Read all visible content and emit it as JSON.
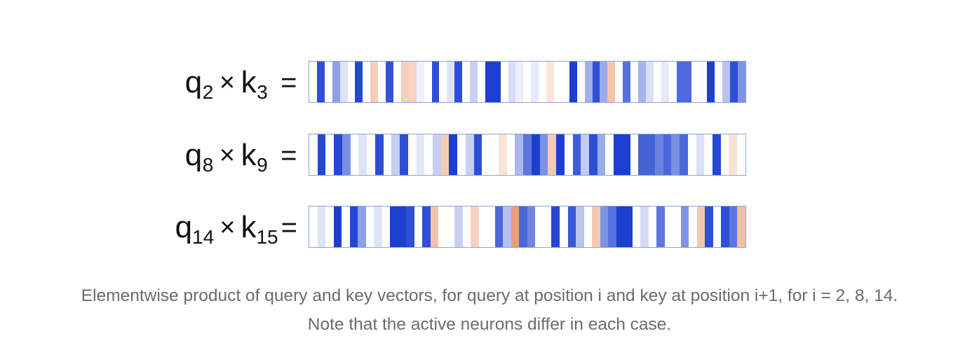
{
  "rows": [
    {
      "q_sub": "2",
      "k_sub": "3",
      "cells": [
        "#ffffff",
        "#2e4fd6",
        "#ffffff",
        "#8ea0e8",
        "#dfe3f7",
        "#ffffff",
        "#2448d2",
        "#ffffff",
        "#f5cdb8",
        "#ffffff",
        "#3254d8",
        "#fdfdff",
        "#f2d0c0",
        "#f6d3c2",
        "#eef0fb",
        "#ffffff",
        "#2d4fd5",
        "#ffffff",
        "#dfe4f8",
        "#2e4fd6",
        "#ffffff",
        "#c9d1f2",
        "#ffffff",
        "#1d3fcf",
        "#1d3fcf",
        "#ffffff",
        "#d7ddf5",
        "#eceffb",
        "#ffffff",
        "#e7eafa",
        "#ffffff",
        "#f9e6dc",
        "#ffffff",
        "#ffffff",
        "#1d3fcf",
        "#ffffff",
        "#9fb0ea",
        "#2e4fd6",
        "#9aace8",
        "#f4c5ac",
        "#ffffff",
        "#5570dc",
        "#ffffff",
        "#a5b4eb",
        "#dbe0f7",
        "#ffffff",
        "#e5e9f9",
        "#ffffff",
        "#4e6bdb",
        "#4e6bdb",
        "#ffffff",
        "#fbfbff",
        "#1d3fcf",
        "#ffffff",
        "#b7c3ef",
        "#2d4fd5",
        "#7e93e4"
      ],
      "eq": "="
    },
    {
      "q_sub": "8",
      "k_sub": "9",
      "cells": [
        "#ffffff",
        "#2448d2",
        "#ffffff",
        "#2448d2",
        "#7b8fe3",
        "#ffffff",
        "#dfe3f7",
        "#ffffff",
        "#2d4fd5",
        "#ffffff",
        "#c5cef2",
        "#2d4fd5",
        "#ffffff",
        "#e2e6f8",
        "#ffffff",
        "#c7d0f2",
        "#f3ccb6",
        "#1d3fcf",
        "#ffffff",
        "#c8d0f2",
        "#2d4fd5",
        "#ffffff",
        "#ffffff",
        "#f9e4d8",
        "#ffffff",
        "#a9b7ec",
        "#5c76de",
        "#1d3fcf",
        "#7d91e3",
        "#f3cab4",
        "#1d3fcf",
        "#ffffff",
        "#3e5dd8",
        "#c3ccf1",
        "#2d4fd5",
        "#9aace8",
        "#ffffff",
        "#1d3fcf",
        "#1d3fcf",
        "#ffffff",
        "#4563d9",
        "#4563d9",
        "#6b83e0",
        "#4b68da",
        "#7b8fe3",
        "#4b68da",
        "#ffffff",
        "#dbe0f7",
        "#ffffff",
        "#2448d2",
        "#ffffff",
        "#f8e1d4",
        "#ffffff"
      ],
      "eq": "="
    },
    {
      "q_sub": "14",
      "k_sub": "15",
      "cells": [
        "#ffffff",
        "#dfe3f7",
        "#ffffff",
        "#1d3fcf",
        "#ffffff",
        "#2448d2",
        "#8ea0e8",
        "#ffffff",
        "#dfe4f8",
        "#ffffff",
        "#1d3fcf",
        "#1d3fcf",
        "#2e4fd6",
        "#ffffff",
        "#2e4fd6",
        "#f2c3a9",
        "#ffffff",
        "#ffffff",
        "#c9d1f2",
        "#ffffff",
        "#f5d2c0",
        "#ffffff",
        "#ffffff",
        "#4b68da",
        "#b4c0ee",
        "#eb9c77",
        "#4b68da",
        "#6f86e1",
        "#ffffff",
        "#ffffff",
        "#2448d2",
        "#ffffff",
        "#3a59d7",
        "#b9c4ef",
        "#ffffff",
        "#f3c8b1",
        "#7f93e4",
        "#5872dd",
        "#1d3fcf",
        "#1d3fcf",
        "#ffffff",
        "#d5dbf5",
        "#ffffff",
        "#5c76de",
        "#ffffff",
        "#ffffff",
        "#7f93e4",
        "#ffffff",
        "#f3c8b1",
        "#2e4fd6",
        "#ffffff",
        "#2e4fd6",
        "#5c76de",
        "#f2c0a6"
      ],
      "eq": "="
    }
  ],
  "caption": {
    "line1": "Elementwise product of query and key vectors, for query at position i and key at position i+1, for i = 2, 8, 14.",
    "line2": "Note that the active neurons differ in each case."
  }
}
